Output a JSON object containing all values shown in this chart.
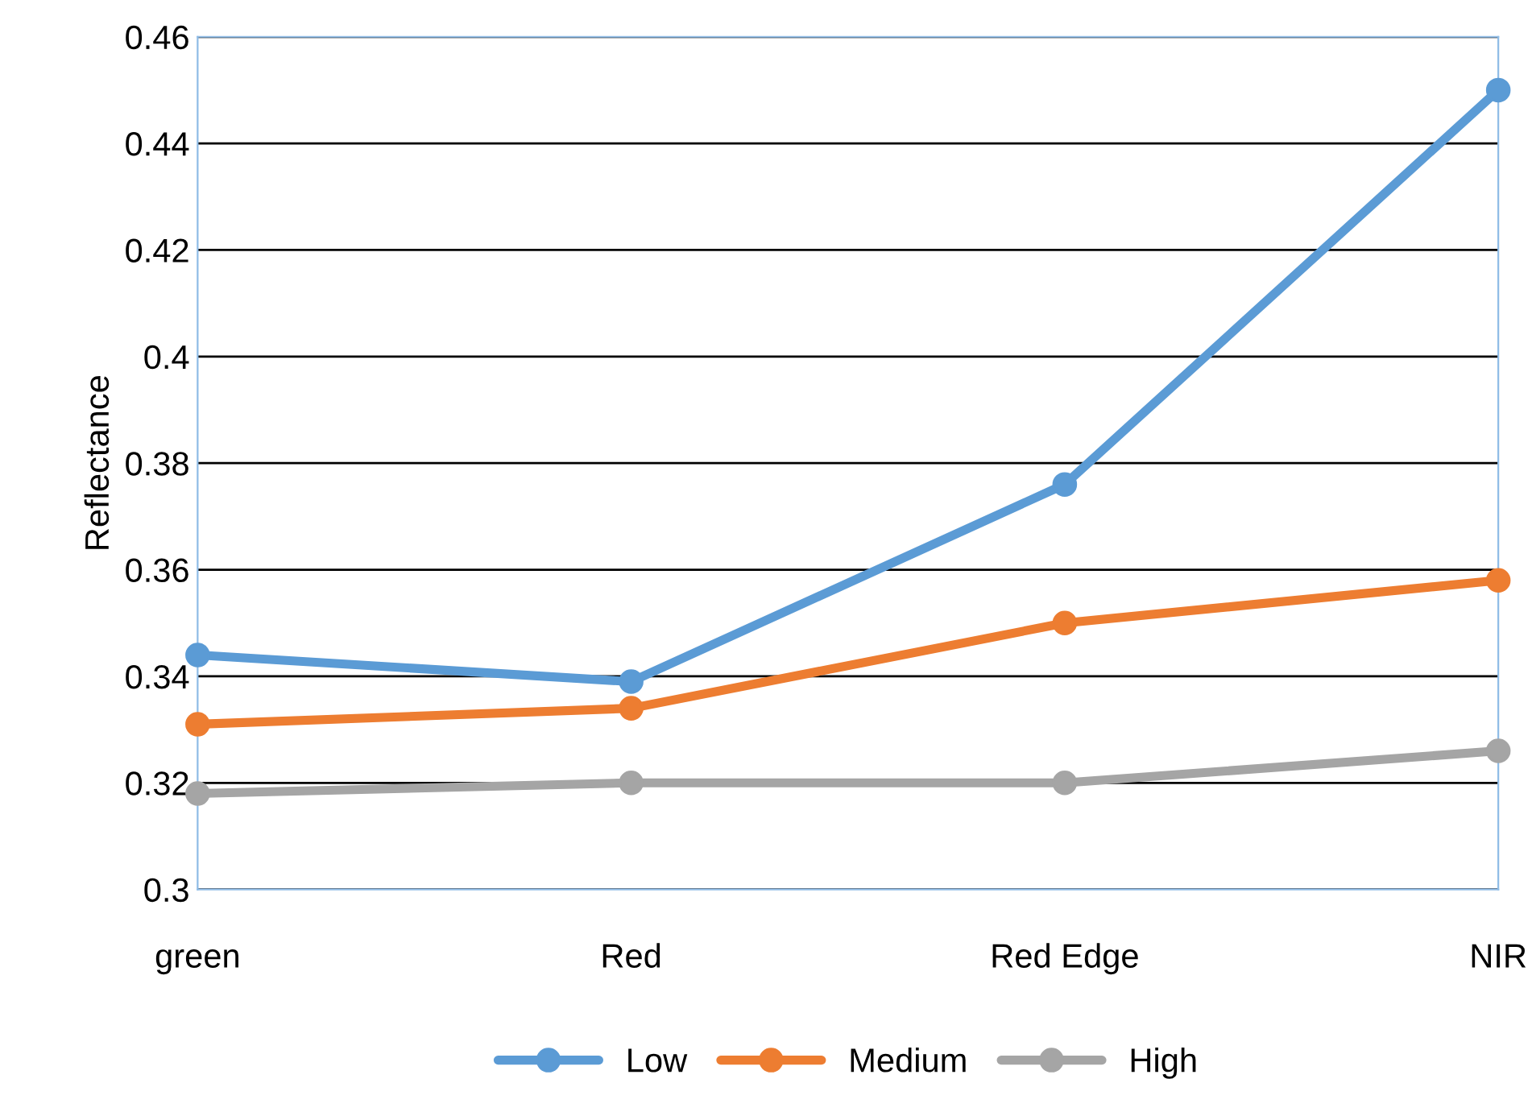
{
  "chart_data": {
    "type": "line",
    "ylabel": "Reflectance",
    "categories": [
      "green",
      "Red",
      "Red Edge",
      "NIR"
    ],
    "series": [
      {
        "name": "Low",
        "color": "#5b9bd5",
        "values": [
          0.344,
          0.339,
          0.376,
          0.45
        ]
      },
      {
        "name": "Medium",
        "color": "#ed7d31",
        "values": [
          0.331,
          0.334,
          0.35,
          0.358
        ]
      },
      {
        "name": "High",
        "color": "#a5a5a5",
        "values": [
          0.318,
          0.32,
          0.32,
          0.326
        ]
      }
    ],
    "ylim": [
      0.3,
      0.46
    ],
    "yticks": [
      0.3,
      0.32,
      0.34,
      0.36,
      0.38,
      0.4,
      0.42,
      0.44,
      0.46
    ],
    "grid": "y",
    "legend": "bottom",
    "marker": "circle",
    "line_style": "solid"
  }
}
